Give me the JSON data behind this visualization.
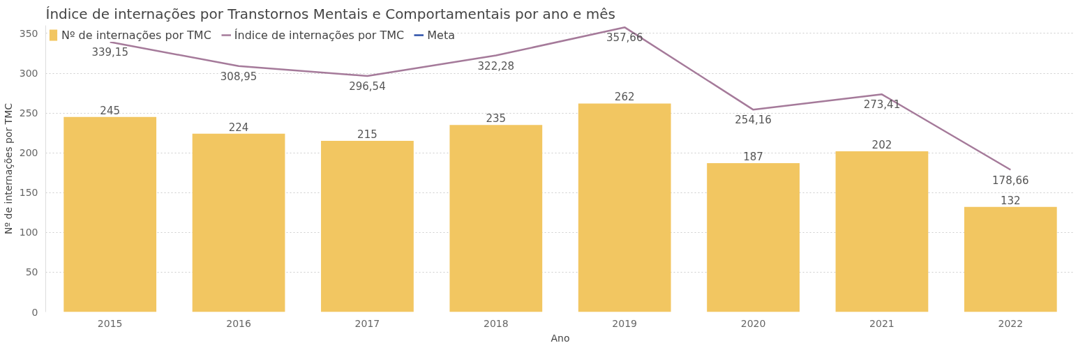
{
  "chart_data": {
    "type": "bar",
    "title": "Índice de internações por Transtornos Mentais e Comportamentais por ano e mês",
    "xlabel": "Ano",
    "ylabel": "Nº de internações por TMC",
    "categories": [
      "2015",
      "2016",
      "2017",
      "2018",
      "2019",
      "2020",
      "2021",
      "2022"
    ],
    "series": [
      {
        "name": "Nº de internações por TMC",
        "color": "#f2c661",
        "values": [
          245,
          224,
          215,
          235,
          262,
          187,
          202,
          132
        ],
        "value_labels": [
          "245",
          "224",
          "215",
          "235",
          "262",
          "187",
          "202",
          "132"
        ]
      },
      {
        "name": "Índice de internações por TMC",
        "type": "line",
        "color": "#a57a9a",
        "values": [
          339.15,
          308.95,
          296.54,
          322.28,
          357.66,
          254.16,
          273.41,
          178.66
        ],
        "value_labels": [
          "339,15",
          "308,95",
          "296,54",
          "322,28",
          "357,66",
          "254,16",
          "273,41",
          "178,66"
        ]
      },
      {
        "name": "Meta",
        "type": "line",
        "color": "#2b4fa8",
        "values": [
          null,
          null,
          null,
          null,
          null,
          null,
          null,
          null
        ]
      }
    ],
    "ylim": [
      0,
      360
    ],
    "yticks": [
      0,
      50,
      100,
      150,
      200,
      250,
      300,
      350
    ],
    "grid": "y",
    "legend": "top left",
    "marker": "none"
  }
}
